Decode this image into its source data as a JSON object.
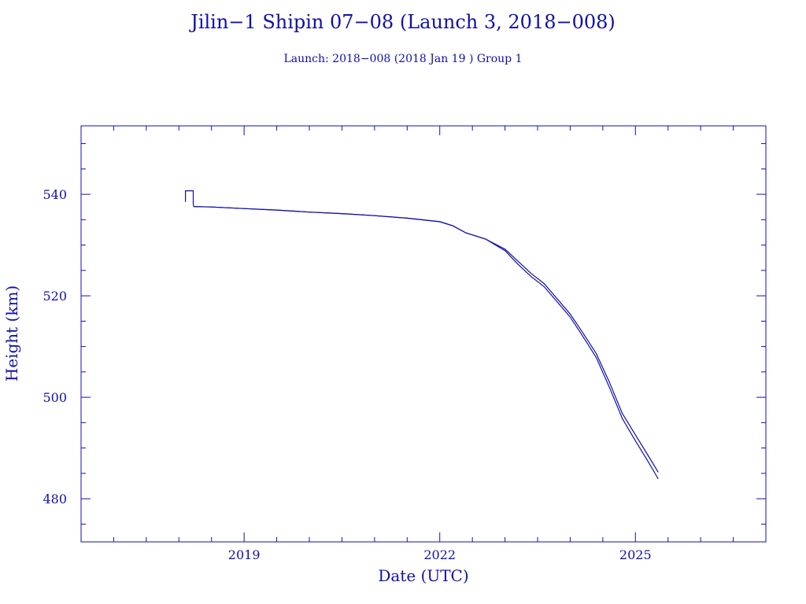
{
  "chart_data": {
    "type": "line",
    "title": "Jilin−1 Shipin 07−08 (Launch 3, 2018−008)",
    "subtitle": "Launch: 2018−008  (2018 Jan 19 )  Group 1",
    "xlabel": "Date (UTC)",
    "ylabel": "Height (km)",
    "xlim": [
      2016.5,
      2027.0
    ],
    "ylim": [
      471.5,
      553.5
    ],
    "xticks": [
      2019,
      2022,
      2025
    ],
    "xtick_labels": [
      "2019",
      "2022",
      "2025"
    ],
    "yticks": [
      480,
      500,
      520,
      540
    ],
    "ytick_labels": [
      "480",
      "500",
      "520",
      "540"
    ],
    "grid": false,
    "color": "#1010a8",
    "series": [
      {
        "x": [
          2018.1,
          2018.1,
          2018.22,
          2018.22,
          2018.23,
          2018.5,
          2019.0,
          2019.5,
          2020.0,
          2020.5,
          2021.0,
          2021.5,
          2022.0,
          2022.2,
          2022.4,
          2022.7,
          2023.0,
          2023.2,
          2023.4,
          2023.6,
          2023.8,
          2024.0,
          2024.2,
          2024.4,
          2024.6,
          2024.8,
          2025.0,
          2025.2,
          2025.35
        ],
        "y": [
          538.5,
          540.7,
          540.7,
          538.0,
          537.6,
          537.5,
          537.2,
          536.9,
          536.5,
          536.2,
          535.8,
          535.3,
          534.6,
          533.8,
          532.4,
          531.2,
          529.2,
          526.8,
          524.4,
          522.4,
          519.4,
          516.4,
          512.6,
          508.6,
          503.0,
          496.8,
          492.6,
          488.4,
          485.2
        ]
      },
      {
        "x": [
          2018.23,
          2018.5,
          2019.0,
          2019.5,
          2020.0,
          2020.5,
          2021.0,
          2021.5,
          2022.0,
          2022.2,
          2022.4,
          2022.7,
          2023.0,
          2023.2,
          2023.4,
          2023.6,
          2023.8,
          2024.0,
          2024.2,
          2024.4,
          2024.6,
          2024.8,
          2025.0,
          2025.2,
          2025.35
        ],
        "y": [
          537.6,
          537.5,
          537.2,
          536.9,
          536.5,
          536.2,
          535.8,
          535.3,
          534.6,
          533.8,
          532.4,
          531.2,
          528.9,
          526.2,
          523.8,
          521.8,
          518.8,
          515.8,
          511.9,
          507.8,
          502.0,
          495.8,
          491.4,
          487.2,
          483.9
        ]
      }
    ]
  }
}
